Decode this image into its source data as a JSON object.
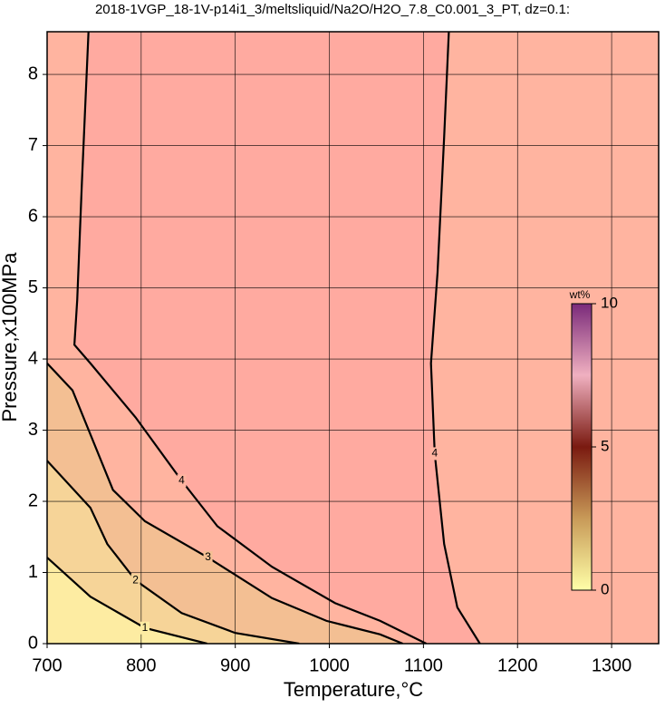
{
  "chart_data": {
    "type": "contour",
    "title": "2018-1VGP_18-1V-p14i1_3/meltsliquid/Na2O/H2O_7.8_C0.001_3_PT, dz=0.1:",
    "x_label": "Temperature,°C",
    "y_label": "Pressure,x100MPa",
    "xlim": [
      700,
      1350
    ],
    "ylim": [
      0,
      8.6
    ],
    "xticks": [
      700,
      800,
      900,
      1000,
      1100,
      1200,
      1300
    ],
    "yticks": [
      0,
      1,
      2,
      3,
      4,
      5,
      6,
      7,
      8
    ],
    "grid": true,
    "contours": [
      {
        "level": 4,
        "color": "#ffb4a0",
        "x": [
          744,
          737,
          732,
          729,
          746,
          794,
          843,
          881,
          939,
          1006,
          1054,
          1103
        ],
        "y": [
          8.6,
          6.49,
          4.83,
          4.2,
          3.94,
          3.18,
          2.29,
          1.65,
          1.08,
          0.57,
          0.32,
          0
        ]
      },
      {
        "level": 4,
        "color": "#ffb4a0",
        "x": [
          1127,
          1122,
          1115,
          1108,
          1112,
          1122,
          1136,
          1160
        ],
        "y": [
          8.6,
          7.12,
          5.22,
          3.94,
          2.67,
          1.4,
          0.51,
          0
        ]
      },
      {
        "level": 3,
        "color": "#f3bf93",
        "x": [
          700,
          727,
          770,
          804,
          871,
          939,
          997,
          1054,
          1078
        ],
        "y": [
          3.94,
          3.56,
          2.16,
          1.72,
          1.21,
          0.64,
          0.32,
          0.13,
          0
        ]
      },
      {
        "level": 2,
        "color": "#f6d498",
        "x": [
          700,
          746,
          764,
          794,
          843,
          900,
          968
        ],
        "y": [
          2.57,
          1.91,
          1.4,
          0.89,
          0.43,
          0.15,
          0
        ]
      },
      {
        "level": 1,
        "color": "#fdeca2",
        "x": [
          700,
          746,
          804,
          870
        ],
        "y": [
          1.21,
          0.66,
          0.22,
          0
        ]
      }
    ],
    "colorbar": {
      "label": "wt%",
      "lim": [
        0,
        10
      ],
      "ticks": [
        0,
        5,
        10
      ]
    }
  }
}
